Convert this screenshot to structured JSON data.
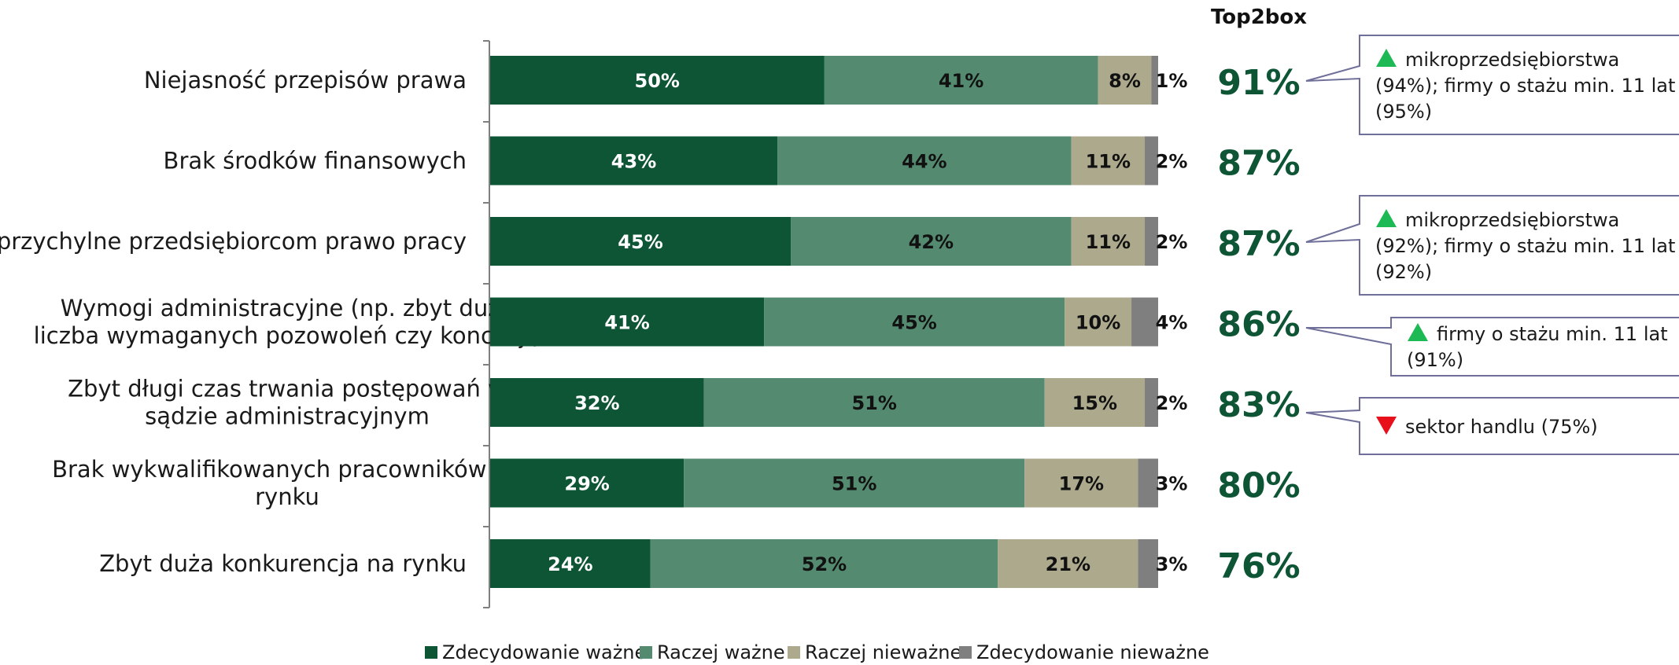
{
  "chart_data": {
    "type": "bar",
    "orientation": "horizontal",
    "stacked": true,
    "categories": [
      [
        "Niejasność przepisów prawa"
      ],
      [
        "Brak środków finansowych"
      ],
      [
        "Nieprzychylne przedsiębiorcom prawo pracy"
      ],
      [
        "Wymogi administracyjne (np. zbyt duża",
        "liczba wymaganych pozowoleń czy koncesji)"
      ],
      [
        "Zbyt długi czas trwania postępowań w",
        "sądzie administracyjnym"
      ],
      [
        "Brak wykwalifikowanych pracowników na",
        "rynku"
      ],
      [
        "Zbyt duża konkurencja na rynku"
      ]
    ],
    "series": [
      {
        "name": "Zdecydowanie ważne",
        "color": "#0d5534",
        "label_color": "#ffffff",
        "values": [
          50,
          43,
          45,
          41,
          32,
          29,
          24
        ]
      },
      {
        "name": "Raczej ważne",
        "color": "#548a6f",
        "label_color": "#111111",
        "values": [
          41,
          44,
          42,
          45,
          51,
          51,
          52
        ]
      },
      {
        "name": "Raczej nieważne",
        "color": "#aca98d",
        "label_color": "#111111",
        "values": [
          8,
          11,
          11,
          10,
          15,
          17,
          21
        ]
      },
      {
        "name": "Zdecydowanie nieważne",
        "color": "#7f7f7f",
        "label_color": "#111111",
        "values": [
          1,
          2,
          2,
          4,
          2,
          3,
          3
        ]
      }
    ],
    "value_suffix": "%",
    "legend_position": "bottom",
    "top2box": {
      "title": "Top2box",
      "values": [
        "91%",
        "87%",
        "87%",
        "86%",
        "83%",
        "80%",
        "76%"
      ],
      "color": "#0d5534"
    },
    "notes": [
      {
        "row": 0,
        "arrow": "up",
        "lines": [
          "mikroprzedsiębiorstwa",
          "(94%); firmy o stażu min. 11 lat",
          "(95%)"
        ]
      },
      {
        "row": 2,
        "arrow": "up",
        "lines": [
          "mikroprzedsiębiorstwa",
          "(92%); firmy o stażu min. 11 lat",
          "(92%)"
        ]
      },
      {
        "row": 3,
        "arrow": "up",
        "lines": [
          "firmy o stażu min. 11 lat",
          "(91%)"
        ]
      },
      {
        "row": 4,
        "arrow": "down",
        "lines": [
          "sektor handlu (75%)"
        ]
      }
    ],
    "arrow_colors": {
      "up": "#1db954",
      "down": "#e8101a"
    }
  }
}
